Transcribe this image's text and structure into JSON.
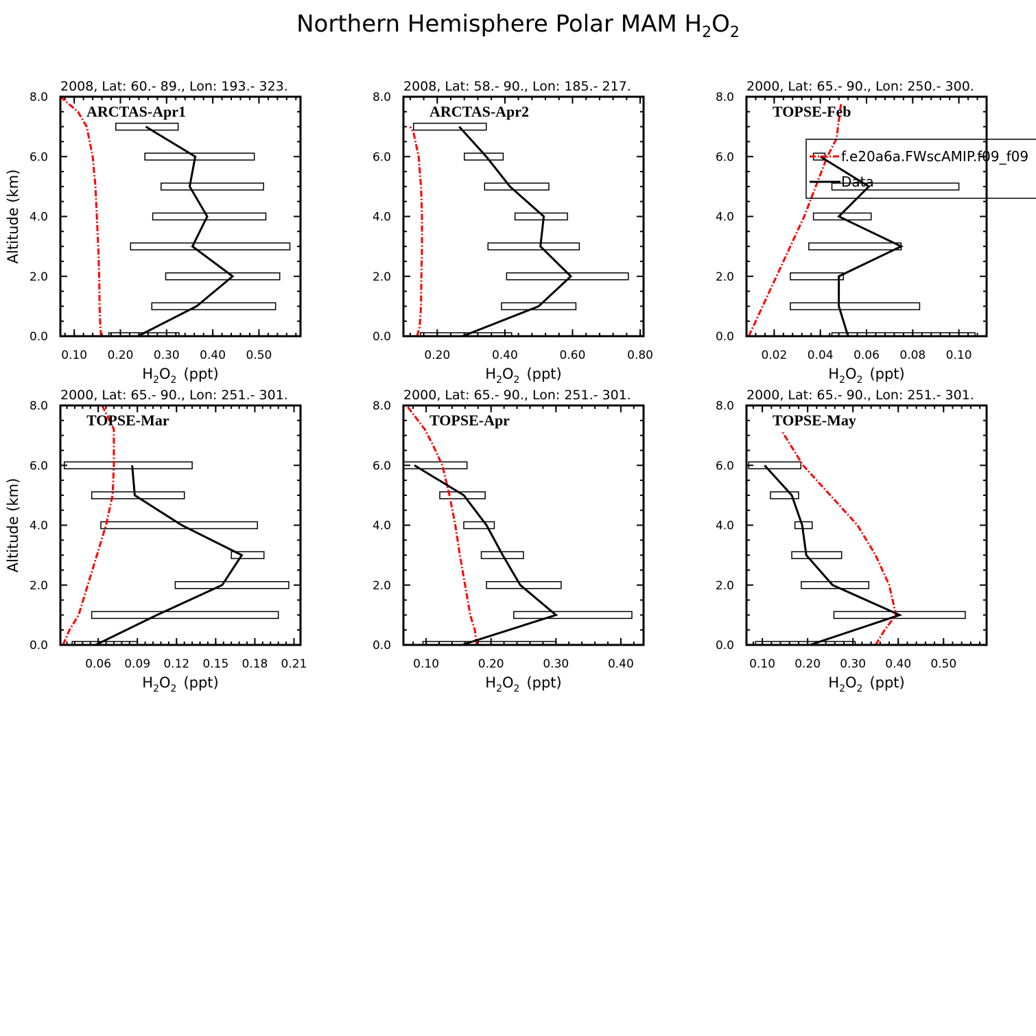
{
  "figure": {
    "title_main": "Northern Hemisphere Polar MAM H",
    "title_sub1": "2",
    "title_mid": "O",
    "title_sub2": "2"
  },
  "axis_text": {
    "ylabel": "Altitude (km)",
    "xlabel_main": "H",
    "xlabel_sub1": "2",
    "xlabel_mid": "O",
    "xlabel_sub2": "2",
    "xlabel_unit": "(ppt)"
  },
  "legend": {
    "model_label": "f.e20a6a.FWscAMIP.f09_f09",
    "data_label": "Data"
  },
  "colors": {
    "model": "#ff0000",
    "data": "#000000"
  },
  "chart_data": [
    {
      "type": "line",
      "header": "2008, Lat:  60.- 89., Lon: 193.- 323.",
      "campaign": "ARCTAS-Apr1",
      "xlim": [
        0.07,
        0.59
      ],
      "ylim": [
        0,
        8
      ],
      "xticks": [
        0.1,
        0.2,
        0.3,
        0.4,
        0.5
      ],
      "xtick_labels": [
        "0.10",
        "0.20",
        "0.30",
        "0.40",
        "0.50"
      ],
      "yticks": [
        0,
        2,
        4,
        6,
        8
      ],
      "ytick_labels": [
        "0.0",
        "2.0",
        "4.0",
        "6.0",
        "8.0"
      ],
      "model": {
        "x": [
          0.158,
          0.156,
          0.155,
          0.154,
          0.152,
          0.149,
          0.146,
          0.14,
          0.127,
          0.108,
          0.07
        ],
        "y": [
          0,
          0.5,
          1,
          2,
          3,
          4,
          5,
          6,
          7,
          7.5,
          8
        ]
      },
      "data": {
        "x": [
          0.238,
          0.365,
          0.443,
          0.356,
          0.388,
          0.35,
          0.362,
          0.255
        ],
        "y": [
          0,
          1,
          2,
          3,
          4,
          5,
          6,
          7
        ]
      },
      "ranges": [
        [
          0.175,
          0.327
        ],
        [
          0.268,
          0.536
        ],
        [
          0.298,
          0.545
        ],
        [
          0.222,
          0.567
        ],
        [
          0.27,
          0.515
        ],
        [
          0.288,
          0.51
        ],
        [
          0.253,
          0.49
        ],
        [
          0.19,
          0.325
        ]
      ]
    },
    {
      "type": "line",
      "header": "2008, Lat:  58.- 90., Lon: 185.- 217.",
      "campaign": "ARCTAS-Apr2",
      "xlim": [
        0.1,
        0.81
      ],
      "ylim": [
        0,
        8
      ],
      "xticks": [
        0.2,
        0.4,
        0.6,
        0.8
      ],
      "xtick_labels": [
        "0.20",
        "0.40",
        "0.60",
        "0.80"
      ],
      "yticks": [
        0,
        2,
        4,
        6,
        8
      ],
      "ytick_labels": [
        "0.0",
        "2.0",
        "4.0",
        "6.0",
        "8.0"
      ],
      "model": {
        "x": [
          0.14,
          0.148,
          0.152,
          0.153,
          0.155,
          0.155,
          0.152,
          0.145,
          0.13,
          0.12
        ],
        "y": [
          0,
          0.3,
          1,
          2,
          3,
          4,
          5,
          6,
          6.8,
          7
        ]
      },
      "data": {
        "x": [
          0.275,
          0.5,
          0.595,
          0.505,
          0.515,
          0.415,
          0.345,
          0.265
        ],
        "y": [
          0,
          1,
          2,
          3,
          4,
          5,
          6,
          7
        ]
      },
      "ranges": [
        [
          0.15,
          0.42
        ],
        [
          0.39,
          0.61
        ],
        [
          0.405,
          0.765
        ],
        [
          0.35,
          0.62
        ],
        [
          0.43,
          0.585
        ],
        [
          0.34,
          0.53
        ],
        [
          0.28,
          0.395
        ],
        [
          0.13,
          0.345
        ]
      ]
    },
    {
      "type": "line",
      "header": "2000, Lat: 65.- 90., Lon: 250.- 300.",
      "campaign": "TOPSE-Feb",
      "xlim": [
        0.008,
        0.112
      ],
      "ylim": [
        0,
        8
      ],
      "xticks": [
        0.02,
        0.04,
        0.06,
        0.08,
        0.1
      ],
      "xtick_labels": [
        "0.02",
        "0.04",
        "0.06",
        "0.08",
        "0.10"
      ],
      "yticks": [
        0,
        2,
        4,
        6,
        8
      ],
      "ytick_labels": [
        "0.0",
        "2.0",
        "4.0",
        "6.0",
        "8.0"
      ],
      "model": {
        "x": [
          0.009,
          0.015,
          0.021,
          0.027,
          0.033,
          0.038,
          0.043,
          0.047,
          0.049
        ],
        "y": [
          0,
          1,
          2,
          3,
          4,
          5,
          6,
          6.6,
          7.8
        ]
      },
      "data": {
        "x": [
          0.052,
          0.048,
          0.048,
          0.075,
          0.048,
          0.061,
          0.04
        ],
        "y": [
          0,
          1,
          2,
          3,
          4,
          5,
          6
        ]
      },
      "ranges": [
        [
          0.045,
          0.107
        ],
        [
          0.027,
          0.083
        ],
        [
          0.027,
          0.05
        ],
        [
          0.035,
          0.075
        ],
        [
          0.037,
          0.062
        ],
        [
          0.045,
          0.1
        ],
        [
          0.037,
          0.042
        ]
      ]
    },
    {
      "type": "line",
      "header": "2000, Lat: 65.- 90., Lon: 251.- 301.",
      "campaign": "TOPSE-Mar",
      "xlim": [
        0.031,
        0.215
      ],
      "ylim": [
        0,
        8
      ],
      "xticks": [
        0.06,
        0.09,
        0.12,
        0.15,
        0.18,
        0.21
      ],
      "xtick_labels": [
        "0.06",
        "0.09",
        "0.12",
        "0.15",
        "0.18",
        "0.21"
      ],
      "yticks": [
        0,
        2,
        4,
        6,
        8
      ],
      "ytick_labels": [
        "0.0",
        "2.0",
        "4.0",
        "6.0",
        "8.0"
      ],
      "model": {
        "x": [
          0.033,
          0.038,
          0.045,
          0.052,
          0.059,
          0.066,
          0.071,
          0.072,
          0.072,
          0.063
        ],
        "y": [
          0,
          0.5,
          1,
          2,
          3,
          4,
          5,
          6,
          7.2,
          8
        ]
      },
      "data": {
        "x": [
          0.058,
          0.105,
          0.155,
          0.17,
          0.124,
          0.088,
          0.086
        ],
        "y": [
          0,
          1,
          2,
          3,
          4,
          5,
          6
        ]
      },
      "ranges": [
        [
          0.04,
          0.09
        ],
        [
          0.055,
          0.198
        ],
        [
          0.119,
          0.206
        ],
        [
          0.162,
          0.187
        ],
        [
          0.062,
          0.182
        ],
        [
          0.055,
          0.126
        ],
        [
          0.034,
          0.132
        ]
      ]
    },
    {
      "type": "line",
      "header": "2000, Lat: 65.- 90., Lon: 251.- 301.",
      "campaign": "TOPSE-Apr",
      "xlim": [
        0.065,
        0.435
      ],
      "ylim": [
        0,
        8
      ],
      "xticks": [
        0.1,
        0.2,
        0.3,
        0.4
      ],
      "xtick_labels": [
        "0.10",
        "0.20",
        "0.30",
        "0.40"
      ],
      "yticks": [
        0,
        2,
        4,
        6,
        8
      ],
      "ytick_labels": [
        "0.0",
        "2.0",
        "4.0",
        "6.0",
        "8.0"
      ],
      "model": {
        "x": [
          0.178,
          0.175,
          0.168,
          0.16,
          0.152,
          0.145,
          0.136,
          0.125,
          0.11,
          0.098,
          0.07
        ],
        "y": [
          0,
          0.5,
          1,
          2,
          3,
          4,
          5,
          6,
          6.7,
          7.2,
          8
        ]
      },
      "data": {
        "x": [
          0.155,
          0.3,
          0.245,
          0.218,
          0.193,
          0.158,
          0.082
        ],
        "y": [
          0,
          1,
          2,
          3,
          4,
          5,
          6
        ]
      },
      "ranges": [
        [
          0.095,
          0.3
        ],
        [
          0.235,
          0.417
        ],
        [
          0.193,
          0.308
        ],
        [
          0.185,
          0.25
        ],
        [
          0.158,
          0.205
        ],
        [
          0.121,
          0.191
        ],
        [
          0.065,
          0.163
        ]
      ]
    },
    {
      "type": "line",
      "header": "2000, Lat: 65.- 90., Lon: 251.- 301.",
      "campaign": "TOPSE-May",
      "xlim": [
        0.065,
        0.595
      ],
      "ylim": [
        0,
        8
      ],
      "xticks": [
        0.1,
        0.2,
        0.3,
        0.4,
        0.5
      ],
      "xtick_labels": [
        "0.10",
        "0.20",
        "0.30",
        "0.40",
        "0.50"
      ],
      "yticks": [
        0,
        2,
        4,
        6,
        8
      ],
      "ytick_labels": [
        "0.0",
        "2.0",
        "4.0",
        "6.0",
        "8.0"
      ],
      "model": {
        "x": [
          0.35,
          0.37,
          0.395,
          0.38,
          0.35,
          0.31,
          0.25,
          0.19,
          0.145
        ],
        "y": [
          0,
          0.5,
          1,
          2,
          3,
          4,
          5,
          6,
          7.1
        ]
      },
      "data": {
        "x": [
          0.205,
          0.403,
          0.255,
          0.197,
          0.188,
          0.165,
          0.105
        ],
        "y": [
          0,
          1,
          2,
          3,
          4,
          5,
          6
        ]
      },
      "ranges": [
        [
          0.085,
          0.305
        ],
        [
          0.258,
          0.548
        ],
        [
          0.186,
          0.335
        ],
        [
          0.165,
          0.275
        ],
        [
          0.172,
          0.21
        ],
        [
          0.118,
          0.18
        ],
        [
          0.07,
          0.185
        ]
      ]
    }
  ]
}
